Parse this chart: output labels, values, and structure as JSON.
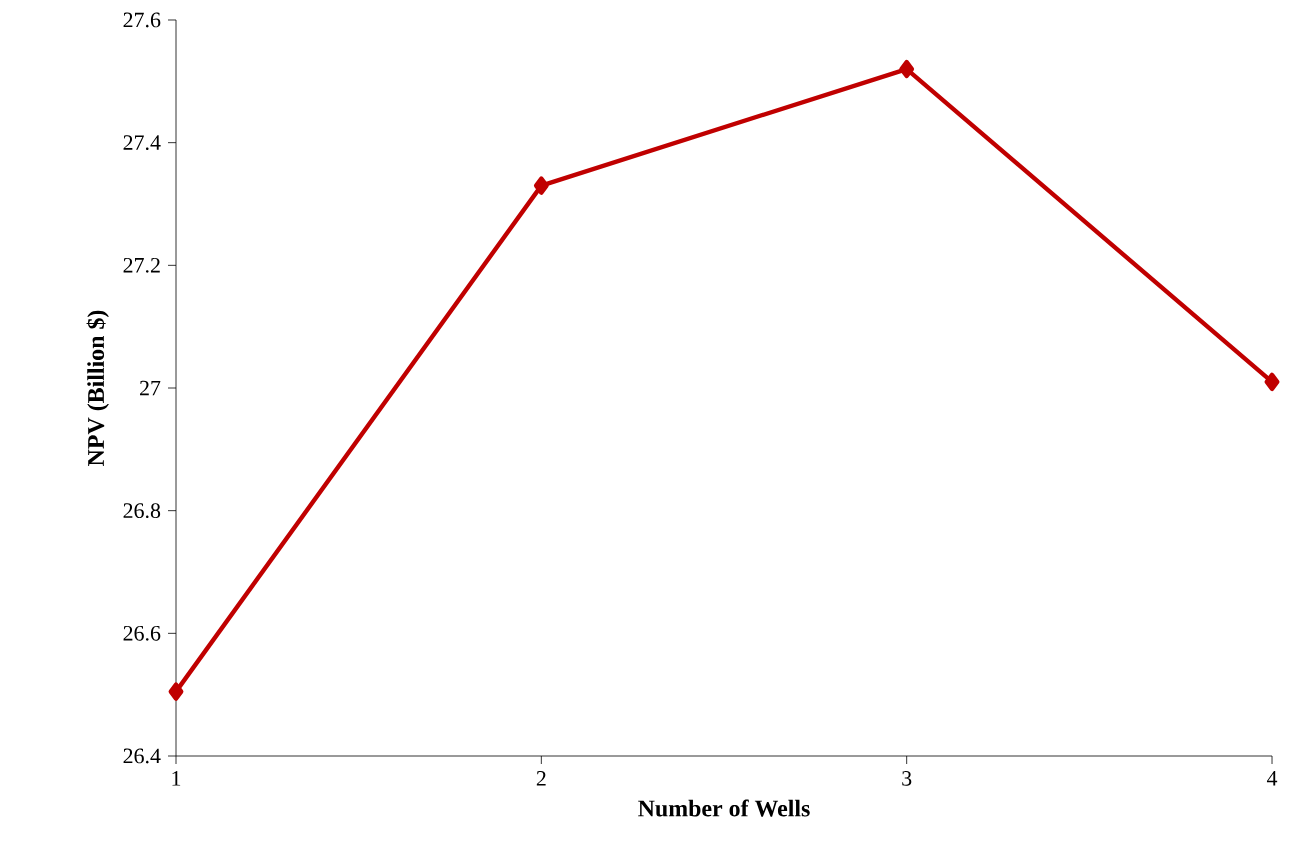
{
  "chart_data": {
    "type": "line",
    "xlabel": "Number of Wells",
    "ylabel": "NPV (Billion $)",
    "x": [
      1,
      2,
      3,
      4
    ],
    "series": [
      {
        "color": "#c00000",
        "values": [
          26.505,
          27.33,
          27.52,
          27.01
        ]
      }
    ],
    "xlim": [
      1,
      4
    ],
    "xticks": [
      1,
      2,
      3,
      4
    ],
    "ylim": [
      26.4,
      27.6
    ],
    "yticks": [
      26.4,
      26.6,
      26.8,
      27,
      27.2,
      27.4,
      27.6
    ],
    "marker": "diamond",
    "line_style": "solid"
  }
}
